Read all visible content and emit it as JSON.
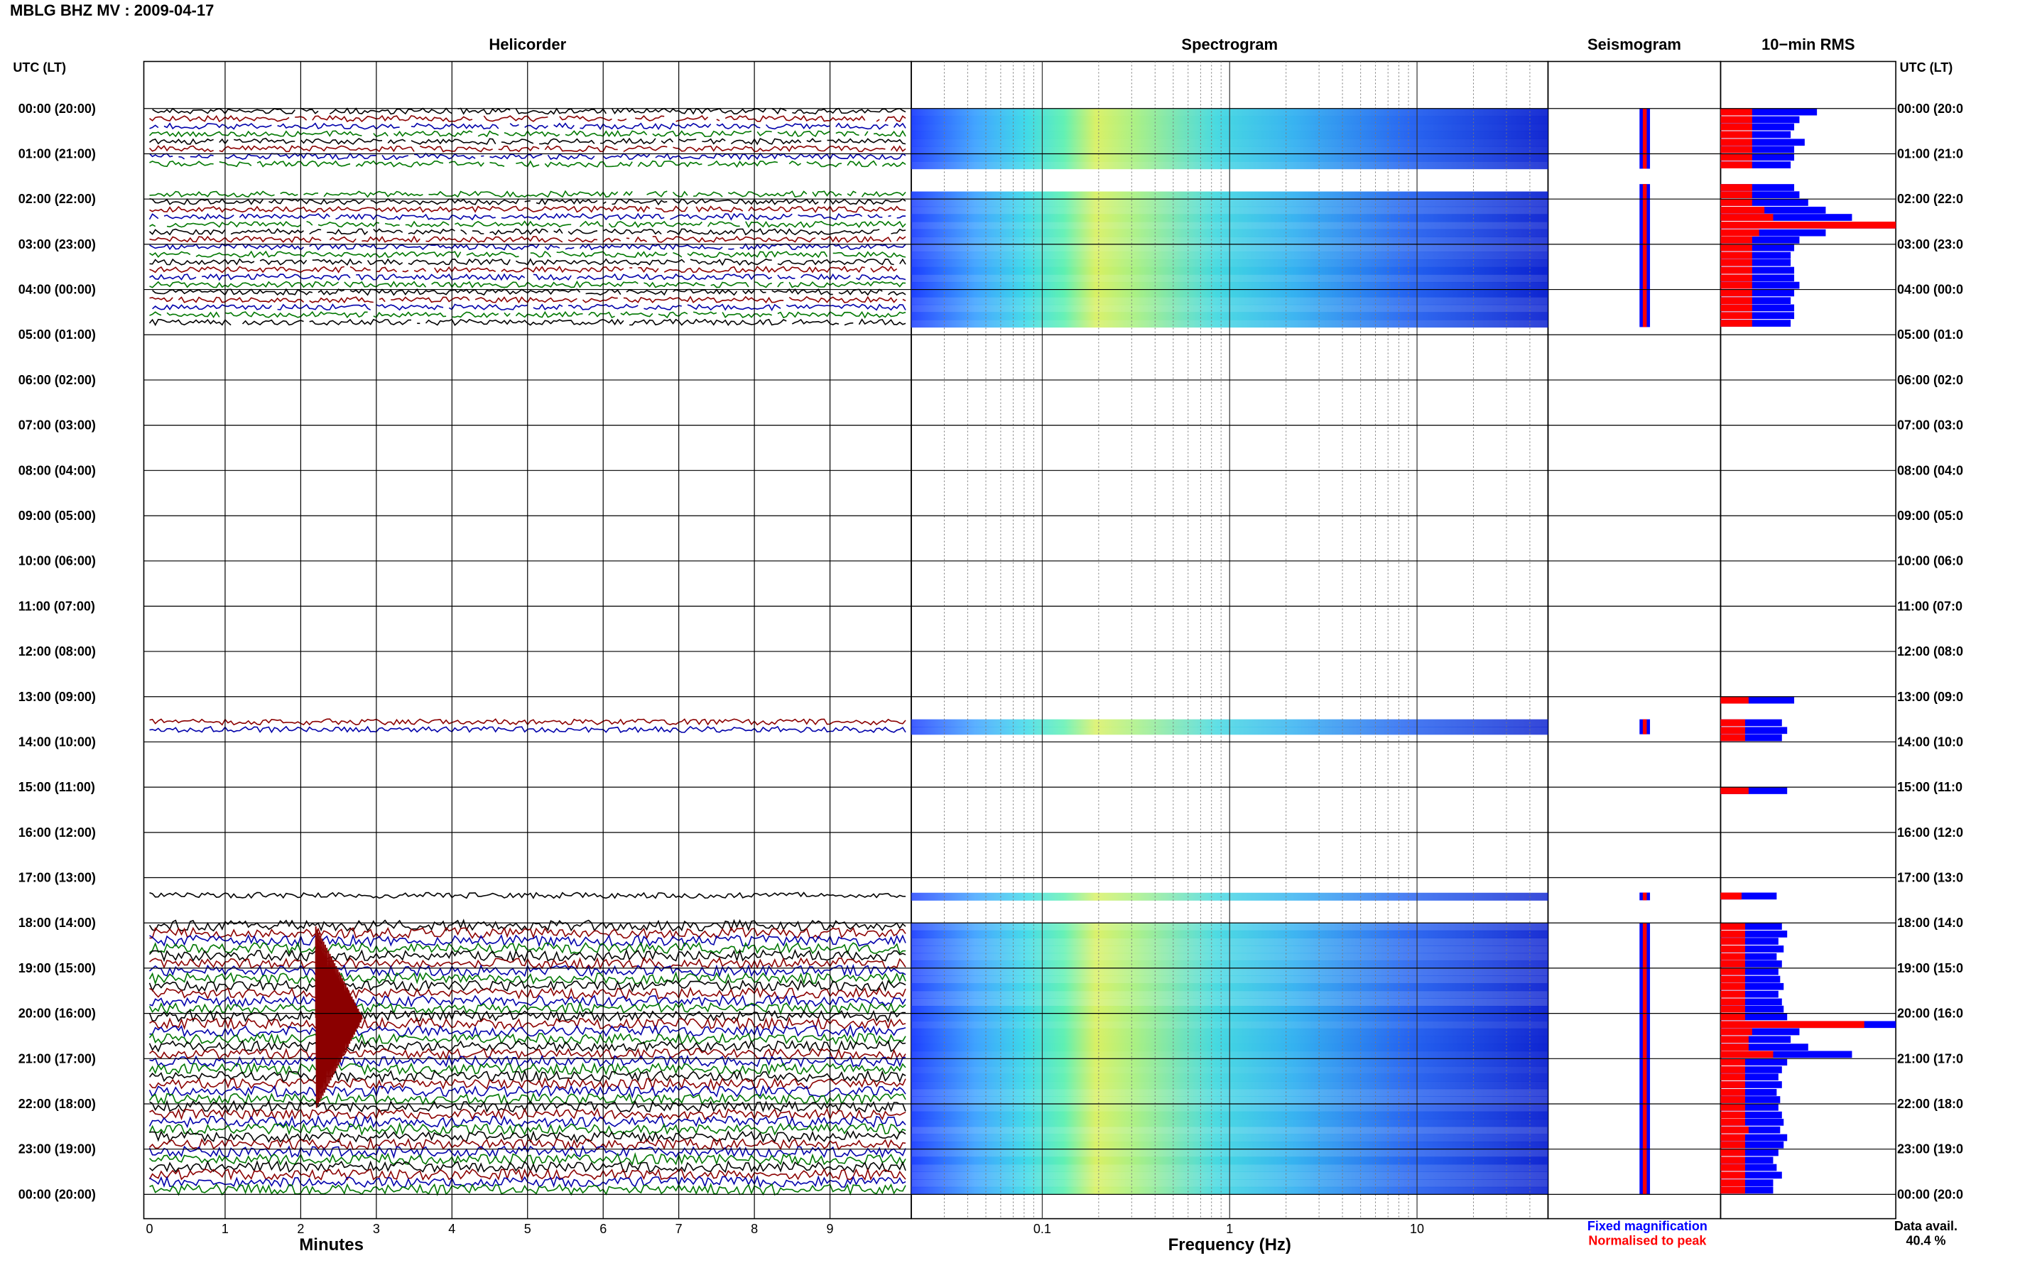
{
  "header": {
    "station": "MBLG BHZ MV",
    "separator": " : ",
    "date": "2009-04-17"
  },
  "panels": {
    "helicorder": "Helicorder",
    "spectrogram": "Spectrogram",
    "seismogram": "Seismogram",
    "rms": "10−min RMS"
  },
  "axes": {
    "left_header": "UTC (LT)",
    "right_header": "UTC (LT)",
    "minutes_label": "Minutes",
    "frequency_label": "Frequency (Hz)",
    "minute_ticks": [
      "0",
      "1",
      "2",
      "3",
      "4",
      "5",
      "6",
      "7",
      "8",
      "9"
    ],
    "frequency_ticks": [
      "0.1",
      "1",
      "10"
    ]
  },
  "legend": {
    "fixed": "Fixed magnification",
    "normalised": "Normalised to peak",
    "fixed_color": "#0000ff",
    "normalised_color": "#ff0000"
  },
  "availability": {
    "label": "Data avail.",
    "value": "40.4 %"
  },
  "colors": {
    "black": "#000000",
    "darkred": "#8b0000",
    "blue": "#0000aa",
    "green": "#007700"
  },
  "chart_data": {
    "type": "heatmap",
    "hour_labels_left": [
      "00:00 (20:00)",
      "01:00 (21:00)",
      "02:00 (22:00)",
      "03:00 (23:00)",
      "04:00 (00:00)",
      "05:00 (01:00)",
      "06:00 (02:00)",
      "07:00 (03:00)",
      "08:00 (04:00)",
      "09:00 (05:00)",
      "10:00 (06:00)",
      "11:00 (07:00)",
      "12:00 (08:00)",
      "13:00 (09:00)",
      "14:00 (10:00)",
      "15:00 (11:00)",
      "16:00 (12:00)",
      "17:00 (13:00)",
      "18:00 (14:00)",
      "19:00 (15:00)",
      "20:00 (16:00)",
      "21:00 (17:00)",
      "22:00 (18:00)",
      "23:00 (19:00)",
      "00:00 (20:00)"
    ],
    "hour_labels_right": [
      "00:00 (20:0",
      "01:00 (21:0",
      "02:00 (22:0",
      "03:00 (23:0",
      "04:00 (00:0",
      "05:00 (01:0",
      "06:00 (02:0",
      "07:00 (03:0",
      "08:00 (04:0",
      "09:00 (05:0",
      "10:00 (06:0",
      "11:00 (07:0",
      "12:00 (08:0",
      "13:00 (09:0",
      "14:00 (10:0",
      "15:00 (11:0",
      "16:00 (12:0",
      "17:00 (13:0",
      "18:00 (14:0",
      "19:00 (15:0",
      "20:00 (16:0",
      "21:00 (17:0",
      "22:00 (18:0",
      "23:00 (19:0",
      "00:00 (20:0"
    ],
    "minutes_range": [
      0,
      10
    ],
    "frequency_range_hz": [
      0.02,
      50
    ],
    "frequency_scale": "log",
    "rms_bars": [
      {
        "hour": 0.0,
        "fixed": 0.55,
        "norm": 0.18
      },
      {
        "hour": 0.17,
        "fixed": 0.45,
        "norm": 0.18
      },
      {
        "hour": 0.33,
        "fixed": 0.42,
        "norm": 0.18
      },
      {
        "hour": 0.5,
        "fixed": 0.4,
        "norm": 0.18
      },
      {
        "hour": 0.67,
        "fixed": 0.48,
        "norm": 0.18
      },
      {
        "hour": 0.83,
        "fixed": 0.42,
        "norm": 0.18
      },
      {
        "hour": 1.0,
        "fixed": 0.42,
        "norm": 0.18
      },
      {
        "hour": 1.17,
        "fixed": 0.4,
        "norm": 0.18
      },
      {
        "hour": 1.67,
        "fixed": 0.42,
        "norm": 0.18
      },
      {
        "hour": 1.83,
        "fixed": 0.45,
        "norm": 0.18
      },
      {
        "hour": 2.0,
        "fixed": 0.5,
        "norm": 0.18
      },
      {
        "hour": 2.17,
        "fixed": 0.6,
        "norm": 0.25
      },
      {
        "hour": 2.33,
        "fixed": 0.75,
        "norm": 0.3
      },
      {
        "hour": 2.5,
        "fixed": 1.0,
        "norm": 1.0
      },
      {
        "hour": 2.67,
        "fixed": 0.6,
        "norm": 0.22
      },
      {
        "hour": 2.83,
        "fixed": 0.45,
        "norm": 0.18
      },
      {
        "hour": 3.0,
        "fixed": 0.42,
        "norm": 0.18
      },
      {
        "hour": 3.17,
        "fixed": 0.4,
        "norm": 0.18
      },
      {
        "hour": 3.33,
        "fixed": 0.4,
        "norm": 0.18
      },
      {
        "hour": 3.5,
        "fixed": 0.42,
        "norm": 0.18
      },
      {
        "hour": 3.67,
        "fixed": 0.42,
        "norm": 0.18
      },
      {
        "hour": 3.83,
        "fixed": 0.45,
        "norm": 0.18
      },
      {
        "hour": 4.0,
        "fixed": 0.42,
        "norm": 0.18
      },
      {
        "hour": 4.17,
        "fixed": 0.4,
        "norm": 0.18
      },
      {
        "hour": 4.33,
        "fixed": 0.42,
        "norm": 0.18
      },
      {
        "hour": 4.5,
        "fixed": 0.42,
        "norm": 0.18
      },
      {
        "hour": 4.67,
        "fixed": 0.4,
        "norm": 0.18
      },
      {
        "hour": 13.0,
        "fixed": 0.42,
        "norm": 0.16
      },
      {
        "hour": 13.5,
        "fixed": 0.35,
        "norm": 0.14
      },
      {
        "hour": 13.67,
        "fixed": 0.38,
        "norm": 0.14
      },
      {
        "hour": 13.83,
        "fixed": 0.35,
        "norm": 0.14
      },
      {
        "hour": 15.0,
        "fixed": 0.38,
        "norm": 0.16
      },
      {
        "hour": 17.33,
        "fixed": 0.32,
        "norm": 0.12
      },
      {
        "hour": 18.0,
        "fixed": 0.35,
        "norm": 0.14
      },
      {
        "hour": 18.17,
        "fixed": 0.38,
        "norm": 0.14
      },
      {
        "hour": 18.33,
        "fixed": 0.33,
        "norm": 0.14
      },
      {
        "hour": 18.5,
        "fixed": 0.36,
        "norm": 0.14
      },
      {
        "hour": 18.67,
        "fixed": 0.32,
        "norm": 0.14
      },
      {
        "hour": 18.83,
        "fixed": 0.35,
        "norm": 0.14
      },
      {
        "hour": 19.0,
        "fixed": 0.33,
        "norm": 0.14
      },
      {
        "hour": 19.17,
        "fixed": 0.34,
        "norm": 0.14
      },
      {
        "hour": 19.33,
        "fixed": 0.36,
        "norm": 0.14
      },
      {
        "hour": 19.5,
        "fixed": 0.33,
        "norm": 0.14
      },
      {
        "hour": 19.67,
        "fixed": 0.35,
        "norm": 0.14
      },
      {
        "hour": 19.83,
        "fixed": 0.36,
        "norm": 0.14
      },
      {
        "hour": 20.0,
        "fixed": 0.38,
        "norm": 0.14
      },
      {
        "hour": 20.17,
        "fixed": 1.0,
        "norm": 0.82
      },
      {
        "hour": 20.33,
        "fixed": 0.45,
        "norm": 0.18
      },
      {
        "hour": 20.5,
        "fixed": 0.4,
        "norm": 0.16
      },
      {
        "hour": 20.67,
        "fixed": 0.5,
        "norm": 0.16
      },
      {
        "hour": 20.83,
        "fixed": 0.75,
        "norm": 0.3
      },
      {
        "hour": 21.0,
        "fixed": 0.38,
        "norm": 0.14
      },
      {
        "hour": 21.17,
        "fixed": 0.35,
        "norm": 0.14
      },
      {
        "hour": 21.33,
        "fixed": 0.33,
        "norm": 0.14
      },
      {
        "hour": 21.5,
        "fixed": 0.35,
        "norm": 0.14
      },
      {
        "hour": 21.67,
        "fixed": 0.32,
        "norm": 0.14
      },
      {
        "hour": 21.83,
        "fixed": 0.34,
        "norm": 0.14
      },
      {
        "hour": 22.0,
        "fixed": 0.33,
        "norm": 0.14
      },
      {
        "hour": 22.17,
        "fixed": 0.35,
        "norm": 0.14
      },
      {
        "hour": 22.33,
        "fixed": 0.36,
        "norm": 0.14
      },
      {
        "hour": 22.5,
        "fixed": 0.34,
        "norm": 0.16
      },
      {
        "hour": 22.67,
        "fixed": 0.38,
        "norm": 0.14
      },
      {
        "hour": 22.83,
        "fixed": 0.36,
        "norm": 0.14
      },
      {
        "hour": 23.0,
        "fixed": 0.33,
        "norm": 0.14
      },
      {
        "hour": 23.17,
        "fixed": 0.3,
        "norm": 0.14
      },
      {
        "hour": 23.33,
        "fixed": 0.32,
        "norm": 0.14
      },
      {
        "hour": 23.5,
        "fixed": 0.35,
        "norm": 0.14
      },
      {
        "hour": 23.67,
        "fixed": 0.3,
        "norm": 0.14
      },
      {
        "hour": 23.83,
        "fixed": 0.3,
        "norm": 0.14
      }
    ],
    "data_hours": [
      [
        0,
        1.33
      ],
      [
        1.67,
        4.83
      ],
      [
        13.5,
        13.83
      ],
      [
        17.33,
        17.5
      ],
      [
        18,
        24
      ]
    ]
  }
}
